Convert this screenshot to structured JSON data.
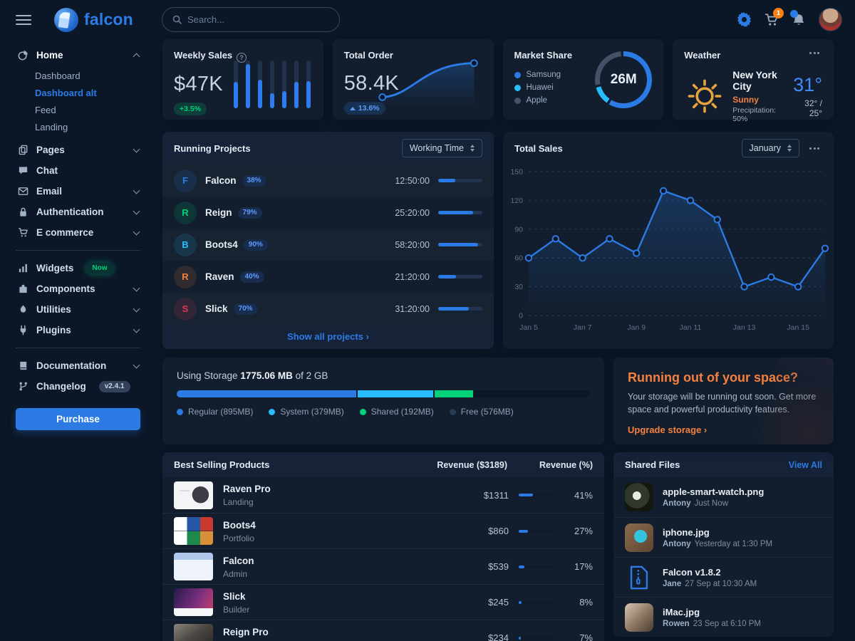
{
  "topbar": {
    "brand": "falcon",
    "search_placeholder": "Search...",
    "cart_badge": "1"
  },
  "sidebar": {
    "items": [
      {
        "icon": "chart-pie-icon",
        "label": "Home",
        "chevron": "up",
        "active": true,
        "children": [
          {
            "label": "Dashboard",
            "active": false
          },
          {
            "label": "Dashboard alt",
            "active": true
          },
          {
            "label": "Feed",
            "active": false
          },
          {
            "label": "Landing",
            "active": false
          }
        ]
      },
      {
        "icon": "copy-icon",
        "label": "Pages",
        "chevron": "down"
      },
      {
        "icon": "comments-icon",
        "label": "Chat"
      },
      {
        "icon": "envelope-icon",
        "label": "Email",
        "chevron": "down"
      },
      {
        "icon": "lock-icon",
        "label": "Authentication",
        "chevron": "down"
      },
      {
        "icon": "cart-icon",
        "label": "E commerce",
        "chevron": "down"
      },
      {
        "divider": true
      },
      {
        "icon": "chart-bar-icon",
        "label": "Widgets",
        "badge": {
          "text": "Now",
          "color": "green"
        }
      },
      {
        "icon": "puzzle-icon",
        "label": "Components",
        "chevron": "down"
      },
      {
        "icon": "fire-icon",
        "label": "Utilities",
        "chevron": "down"
      },
      {
        "icon": "plug-icon",
        "label": "Plugins",
        "chevron": "down"
      },
      {
        "divider": true
      },
      {
        "icon": "book-icon",
        "label": "Documentation",
        "chevron": "down"
      },
      {
        "icon": "code-branch-icon",
        "label": "Changelog",
        "badge": {
          "text": "v2.4.1",
          "color": "blue"
        }
      }
    ],
    "purchase_label": "Purchase"
  },
  "weekly_sales": {
    "title": "Weekly Sales",
    "value": "$47K",
    "badge": "+3.5%",
    "bars": [
      55,
      92,
      60,
      32,
      36,
      55,
      57
    ]
  },
  "total_order": {
    "title": "Total Order",
    "value": "58.4K",
    "badge": "13.6%"
  },
  "market_share": {
    "title": "Market Share",
    "center": "26M",
    "legend": [
      {
        "label": "Samsung",
        "color": "#2c7be5",
        "pct": 60
      },
      {
        "label": "Huawei",
        "color": "#27bcfd",
        "pct": 12
      },
      {
        "label": "Apple",
        "color": "#445168",
        "pct": 28
      }
    ]
  },
  "weather": {
    "title": "Weather",
    "city": "New York City",
    "condition": "Sunny",
    "precipitation": "Precipitation: 50%",
    "temp": "31°",
    "range": "32° / 25°"
  },
  "running_projects": {
    "title": "Running Projects",
    "filter": "Working Time",
    "footer": "Show all projects ›",
    "rows": [
      {
        "initial": "F",
        "color": "#2c7be5",
        "name": "Falcon",
        "pct_label": "38%",
        "time": "12:50:00",
        "progress": 38
      },
      {
        "initial": "R",
        "color": "#00d27a",
        "name": "Reign",
        "pct_label": "79%",
        "time": "25:20:00",
        "progress": 79
      },
      {
        "initial": "B",
        "color": "#27bcfd",
        "name": "Boots4",
        "pct_label": "90%",
        "time": "58:20:00",
        "progress": 90
      },
      {
        "initial": "R",
        "color": "#f5803e",
        "name": "Raven",
        "pct_label": "40%",
        "time": "21:20:00",
        "progress": 40
      },
      {
        "initial": "S",
        "color": "#e63757",
        "name": "Slick",
        "pct_label": "70%",
        "time": "31:20:00",
        "progress": 70
      }
    ]
  },
  "total_sales": {
    "title": "Total Sales",
    "filter": "January"
  },
  "chart_data": {
    "type": "line",
    "title": "Total Sales",
    "x": [
      "Jan 5",
      "Jan 6",
      "Jan 7",
      "Jan 8",
      "Jan 9",
      "Jan 10",
      "Jan 11",
      "Jan 12",
      "Jan 13",
      "Jan 14",
      "Jan 15",
      "Jan 16"
    ],
    "values": [
      60,
      80,
      60,
      80,
      65,
      130,
      120,
      100,
      30,
      40,
      30,
      70
    ],
    "shown_x_ticks": [
      "Jan 5",
      "Jan 7",
      "Jan 9",
      "Jan 11",
      "Jan 13",
      "Jan 15"
    ],
    "yticks": [
      0,
      30,
      60,
      90,
      120,
      150
    ],
    "ylim": [
      0,
      150
    ],
    "grid": "dashed-horizontal",
    "legend_position": "none"
  },
  "storage": {
    "prefix": "Using Storage",
    "used": "1775.06 MB",
    "suffix": "of 2 GB",
    "total_mb": 2048,
    "segments": [
      {
        "label": "Regular (895MB)",
        "mb": 895,
        "color": "#2c7be5"
      },
      {
        "label": "System (379MB)",
        "mb": 379,
        "color": "#27bcfd"
      },
      {
        "label": "Shared (192MB)",
        "mb": 192,
        "color": "#00d27a"
      },
      {
        "label": "Free (576MB)",
        "mb": 576,
        "color": "#0b1727"
      }
    ]
  },
  "space_cta": {
    "title": "Running out of your space?",
    "body": "Your storage will be running out soon. Get more space and powerful productivity features.",
    "link": "Upgrade storage ›"
  },
  "products": {
    "title": "Best Selling Products",
    "col_revenue": "Revenue ($3189)",
    "col_pct": "Revenue (%)",
    "rows": [
      {
        "name": "Raven Pro",
        "category": "Landing",
        "revenue": "$1311",
        "pct": 41,
        "pct_label": "41%",
        "thumb": "raven-pro"
      },
      {
        "name": "Boots4",
        "category": "Portfolio",
        "revenue": "$860",
        "pct": 27,
        "pct_label": "27%",
        "thumb": "boots4"
      },
      {
        "name": "Falcon",
        "category": "Admin",
        "revenue": "$539",
        "pct": 17,
        "pct_label": "17%",
        "thumb": "falcon"
      },
      {
        "name": "Slick",
        "category": "Builder",
        "revenue": "$245",
        "pct": 8,
        "pct_label": "8%",
        "thumb": "slick"
      },
      {
        "name": "Reign Pro",
        "category": "Agency",
        "revenue": "$234",
        "pct": 7,
        "pct_label": "7%",
        "thumb": "reign-pro"
      }
    ]
  },
  "shared_files": {
    "title": "Shared Files",
    "link": "View All",
    "rows": [
      {
        "name": "apple-smart-watch.png",
        "user": "Antony",
        "time": "Just Now",
        "thumb": "watch"
      },
      {
        "name": "iphone.jpg",
        "user": "Antony",
        "time": "Yesterday at 1:30 PM",
        "thumb": "iphone"
      },
      {
        "name": "Falcon v1.8.2",
        "user": "Jane",
        "time": "27 Sep at 10:30 AM",
        "thumb": "zip"
      },
      {
        "name": "iMac.jpg",
        "user": "Rowen",
        "time": "23 Sep at 6:10 PM",
        "thumb": "imac"
      }
    ]
  },
  "colors": {
    "primary": "#2c7be5",
    "info": "#27bcfd",
    "success": "#00d27a",
    "warning": "#f5803e",
    "danger": "#e63757",
    "bg": "#0b1727",
    "card": "#121e2d"
  }
}
